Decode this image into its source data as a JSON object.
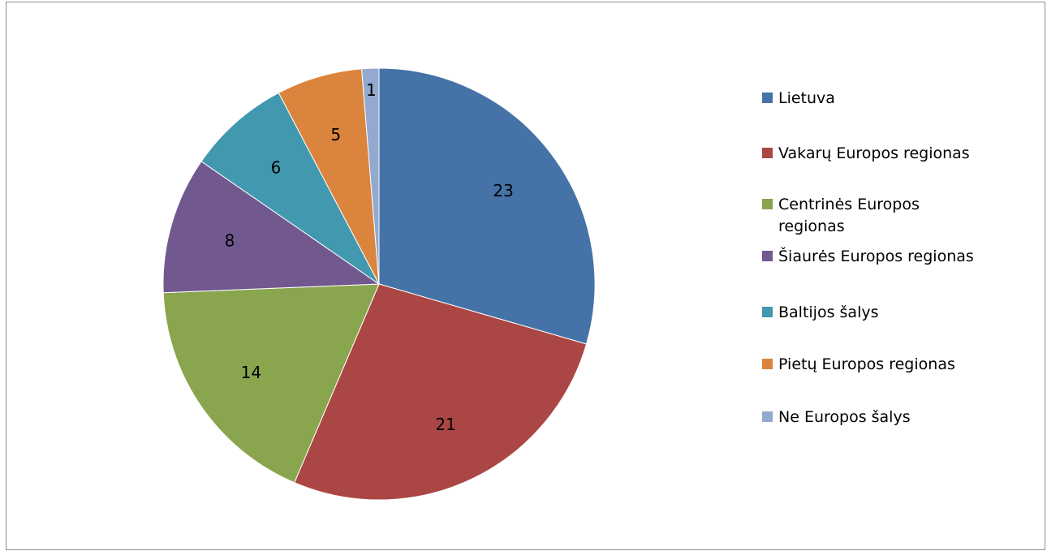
{
  "chart_data": {
    "type": "pie",
    "title": "",
    "start_angle_deg": 0,
    "direction": "clockwise",
    "legend_position": "right",
    "data_labels": "values",
    "slices": [
      {
        "label": "Lietuva",
        "value": 23,
        "color": "#4572A7"
      },
      {
        "label": "Vakarų Europos regionas",
        "value": 21,
        "color": "#AA4643"
      },
      {
        "label": "Centrinės Europos regionas",
        "value": 14,
        "color": "#89A54E"
      },
      {
        "label": "Šiaurės Europos regionas",
        "value": 8,
        "color": "#71588F"
      },
      {
        "label": "Baltijos šalys",
        "value": 6,
        "color": "#4198AF"
      },
      {
        "label": "Pietų Europos regionas",
        "value": 5,
        "color": "#DB843D"
      },
      {
        "label": "Ne Europos šalys",
        "value": 1,
        "color": "#93A9CF"
      }
    ]
  }
}
